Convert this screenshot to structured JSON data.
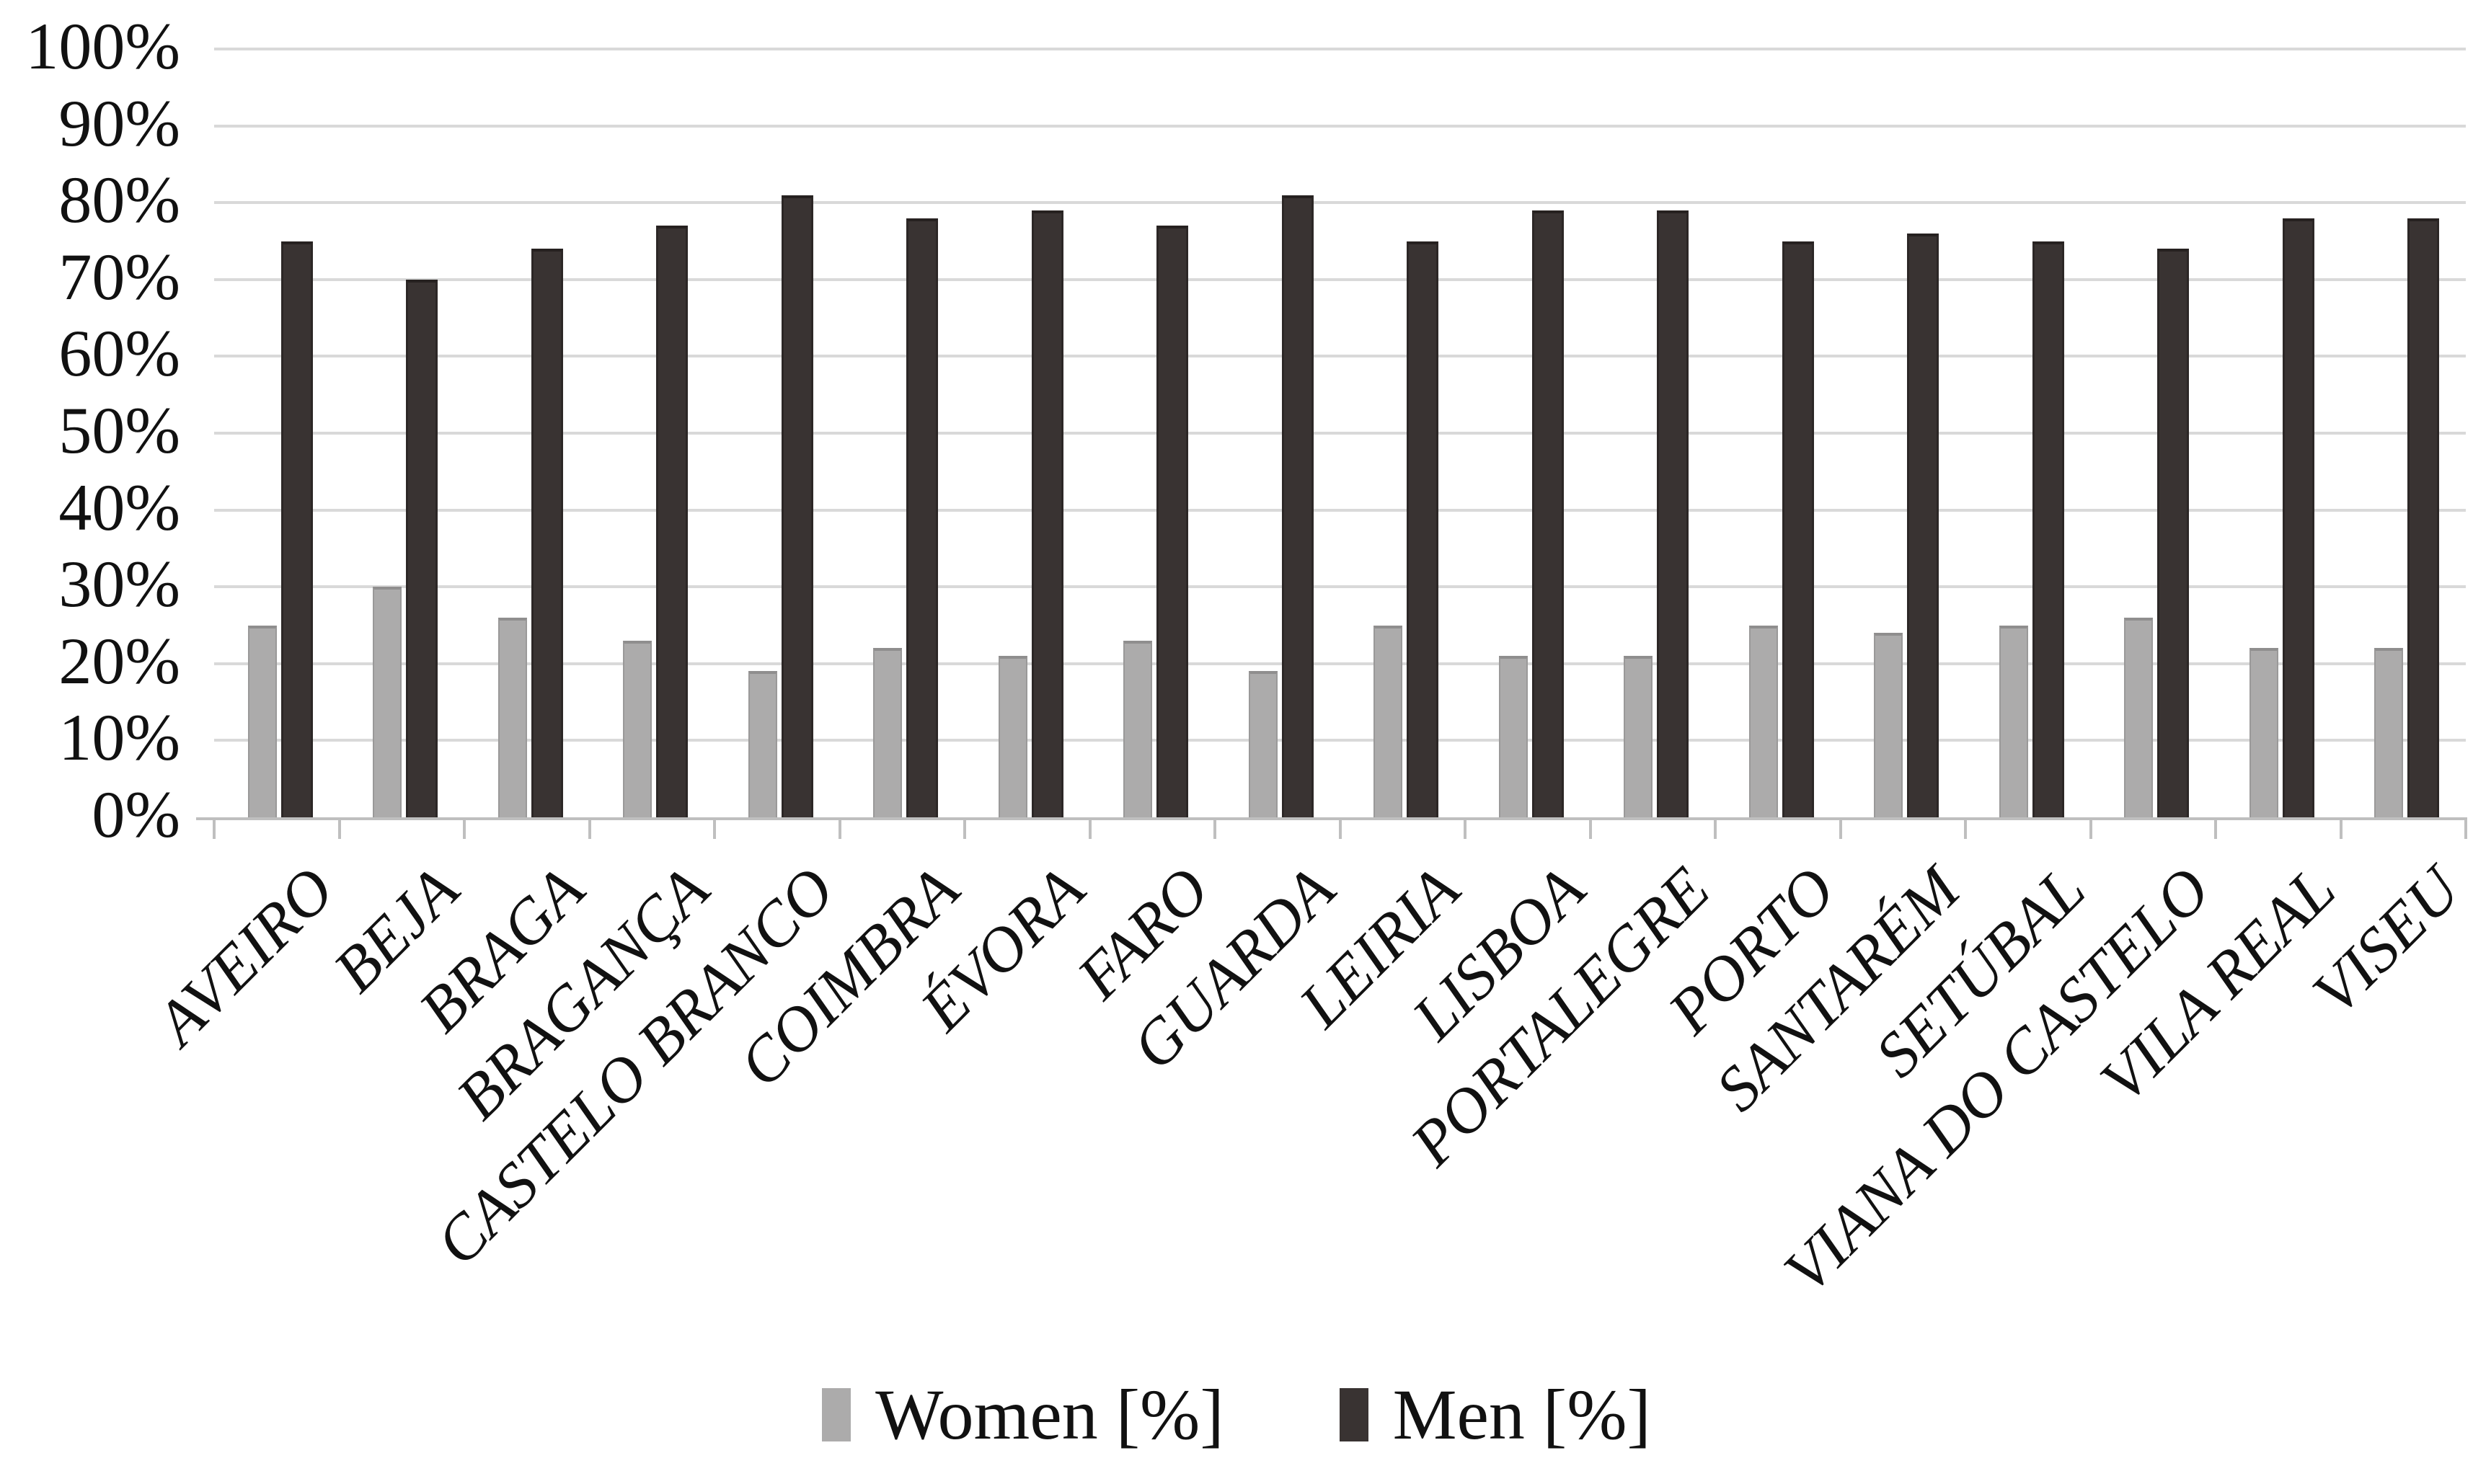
{
  "chart_data": {
    "type": "bar",
    "title": "",
    "xlabel": "",
    "ylabel": "",
    "categories": [
      "AVEIRO",
      "BEJA",
      "BRAGA",
      "BRAGANÇA",
      "CASTELO BRANCO",
      "COIMBRA",
      "ÉVORA",
      "FARO",
      "GUARDA",
      "LEIRIA",
      "LISBOA",
      "PORTALEGRE",
      "PORTO",
      "SANTARÉM",
      "SETÚBAL",
      "VIANA DO CASTELO",
      "VILA REAL",
      "VISEU"
    ],
    "series": [
      {
        "name": "Women [%]",
        "color": "#acabab",
        "values": [
          25,
          30,
          26,
          23,
          19,
          22,
          21,
          23,
          19,
          25,
          21,
          21,
          25,
          24,
          25,
          26,
          22,
          22
        ]
      },
      {
        "name": "Men [%]",
        "color": "#393332",
        "values": [
          75,
          70,
          74,
          77,
          81,
          78,
          79,
          77,
          81,
          75,
          79,
          79,
          75,
          76,
          75,
          74,
          78,
          78
        ]
      }
    ],
    "ylim": [
      0,
      100
    ],
    "ytick_step": 10,
    "ytick_labels": [
      "0%",
      "10%",
      "20%",
      "30%",
      "40%",
      "50%",
      "60%",
      "70%",
      "80%",
      "90%",
      "100%"
    ],
    "grid": true,
    "legend_position": "bottom",
    "legend_labels": [
      "Women [%]",
      "Men [%]"
    ]
  },
  "colors": {
    "women_bar": "#acabab",
    "men_bar": "#393332",
    "gridline": "#d9d9d9",
    "axis": "#bfbfbf",
    "text": "#111111",
    "background": "#ffffff"
  }
}
